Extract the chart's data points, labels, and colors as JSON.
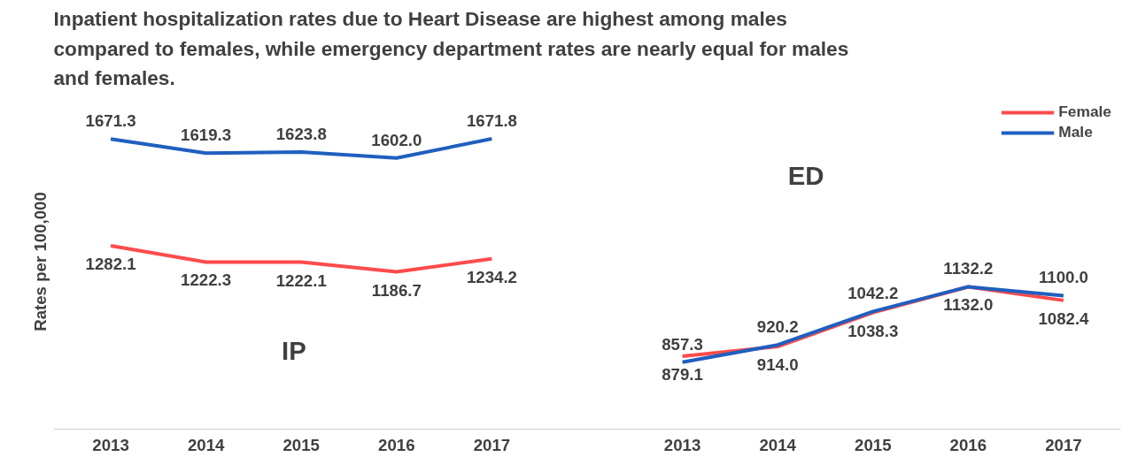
{
  "chart_data": {
    "type": "line",
    "title": "Inpatient hospitalization rates due to Heart Disease are highest among males compared to females, while emergency department rates are nearly equal for males and females.",
    "ylabel": "Rates per 100,000",
    "categories": [
      "2013",
      "2014",
      "2015",
      "2016",
      "2017",
      null,
      "2013",
      "2014",
      "2015",
      "2016",
      "2017"
    ],
    "series": [
      {
        "name": "Female",
        "color": "#ff4b4b",
        "values": [
          1282.1,
          1222.3,
          1222.1,
          1186.7,
          1234.2,
          null,
          879.1,
          914.0,
          1038.3,
          1132.0,
          1082.4
        ],
        "value_labels": [
          "1282.1",
          "1222.3",
          "1222.1",
          "1186.7",
          "1234.2",
          null,
          "879.1",
          "914.0",
          "1038.3",
          "1132.0",
          "1082.4"
        ]
      },
      {
        "name": "Male",
        "color": "#1f5fbf",
        "values": [
          1671.3,
          1619.3,
          1623.8,
          1602.0,
          1671.8,
          null,
          857.3,
          920.2,
          1042.2,
          1132.2,
          1100.0
        ],
        "value_labels": [
          "1671.3",
          "1619.3",
          "1623.8",
          "1602.0",
          "1671.8",
          null,
          "857.3",
          "920.2",
          "1042.2",
          "1132.2",
          "1100.0"
        ]
      }
    ],
    "annotations": [
      "IP",
      "ED"
    ],
    "legend": "top right",
    "grid": false,
    "tick_labels": "x",
    "line_style": "solid",
    "marker": "none"
  }
}
